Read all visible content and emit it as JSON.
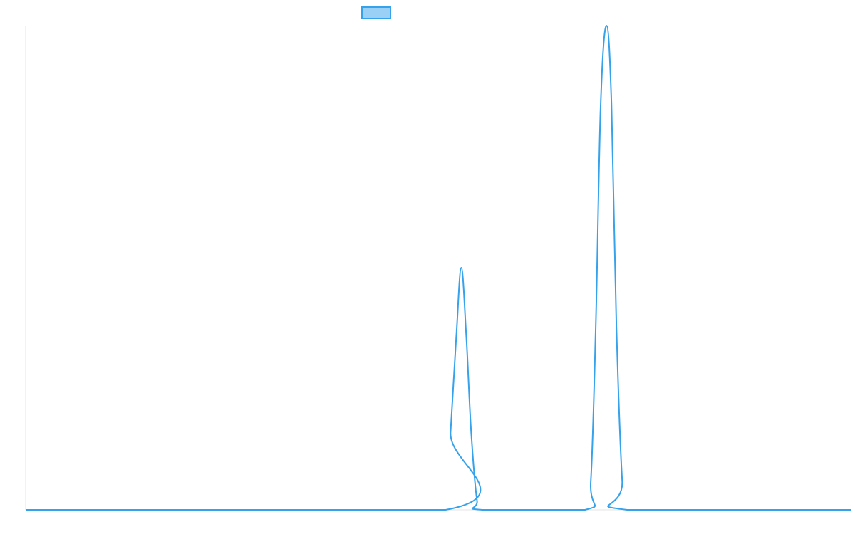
{
  "chart_data": {
    "type": "line",
    "title": "",
    "xlabel": "",
    "ylabel": "",
    "grid": false,
    "legend": "top-center",
    "xlim": [
      0,
      100
    ],
    "ylim": [
      0,
      1
    ],
    "series": [
      {
        "color": "#36a2eb",
        "fill_color": "#9ad0f5",
        "x": [
          0,
          50.9,
          51.5,
          52.2,
          52.8,
          53.4,
          54.0,
          54.7,
          55.3,
          67.8,
          68.5,
          69.1,
          69.7,
          70.4,
          71.0,
          71.6,
          72.3,
          72.9,
          100
        ],
        "y": [
          0,
          0,
          0.16,
          0.36,
          0.5,
          0.36,
          0.16,
          0.02,
          0,
          0,
          0.06,
          0.38,
          0.84,
          1.0,
          0.84,
          0.38,
          0.06,
          0,
          0
        ]
      }
    ]
  }
}
